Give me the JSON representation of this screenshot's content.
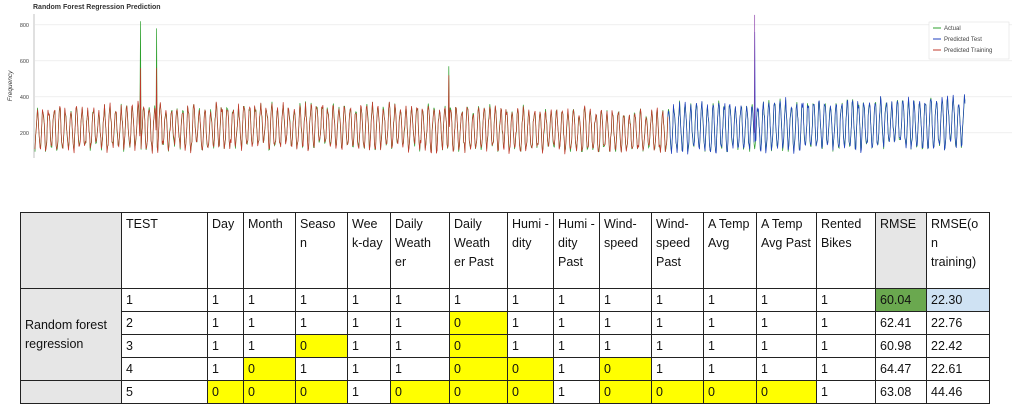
{
  "chart_data": {
    "type": "line",
    "title": "Random Forest Regression Prediction",
    "ylabel": "Frequency",
    "xlabel": "",
    "yticks": [
      200,
      400,
      600,
      800
    ],
    "ylim": [
      60,
      860
    ],
    "legend_position": "top-right",
    "series": [
      {
        "name": "Actual",
        "color": "#2ca02c"
      },
      {
        "name": "Predicted Test",
        "color": "#1f3fbf"
      },
      {
        "name": "Predicted Training",
        "color": "#c0392b"
      }
    ]
  },
  "table": {
    "headers": [
      "TEST",
      "Day",
      "Month",
      "Seaso n",
      "Wee k-day",
      "Daily Weath er",
      "Daily Weath er Past",
      "Humi -dity",
      "Humi -dity Past",
      "Wind-speed",
      "Wind-speed Past",
      "A Temp Avg",
      "A Temp Avg Past",
      "Rented Bikes",
      "RMSE",
      "RMSE(o n training)"
    ],
    "row_label": "Random forest regression",
    "rows": [
      [
        "1",
        "1",
        "1",
        "1",
        "1",
        "1",
        "1",
        "1",
        "1",
        "1",
        "1",
        "1",
        "1",
        "1",
        "60.04",
        "22.30"
      ],
      [
        "2",
        "1",
        "1",
        "1",
        "1",
        "1",
        "0",
        "1",
        "1",
        "1",
        "1",
        "1",
        "1",
        "1",
        "62.41",
        "22.76"
      ],
      [
        "3",
        "1",
        "1",
        "0",
        "1",
        "1",
        "0",
        "1",
        "1",
        "1",
        "1",
        "1",
        "1",
        "1",
        "60.98",
        "22.42"
      ],
      [
        "4",
        "1",
        "0",
        "1",
        "1",
        "1",
        "0",
        "0",
        "1",
        "0",
        "1",
        "1",
        "1",
        "1",
        "64.47",
        "22.61"
      ],
      [
        "5",
        "0",
        "0",
        "0",
        "1",
        "0",
        "0",
        "0",
        "1",
        "0",
        "0",
        "0",
        "0",
        "1",
        "63.08",
        "44.46"
      ]
    ],
    "highlight_color": "#ffff00",
    "best_rmse_color": "#6aa84f",
    "best_training_color": "#cfe2f3"
  }
}
